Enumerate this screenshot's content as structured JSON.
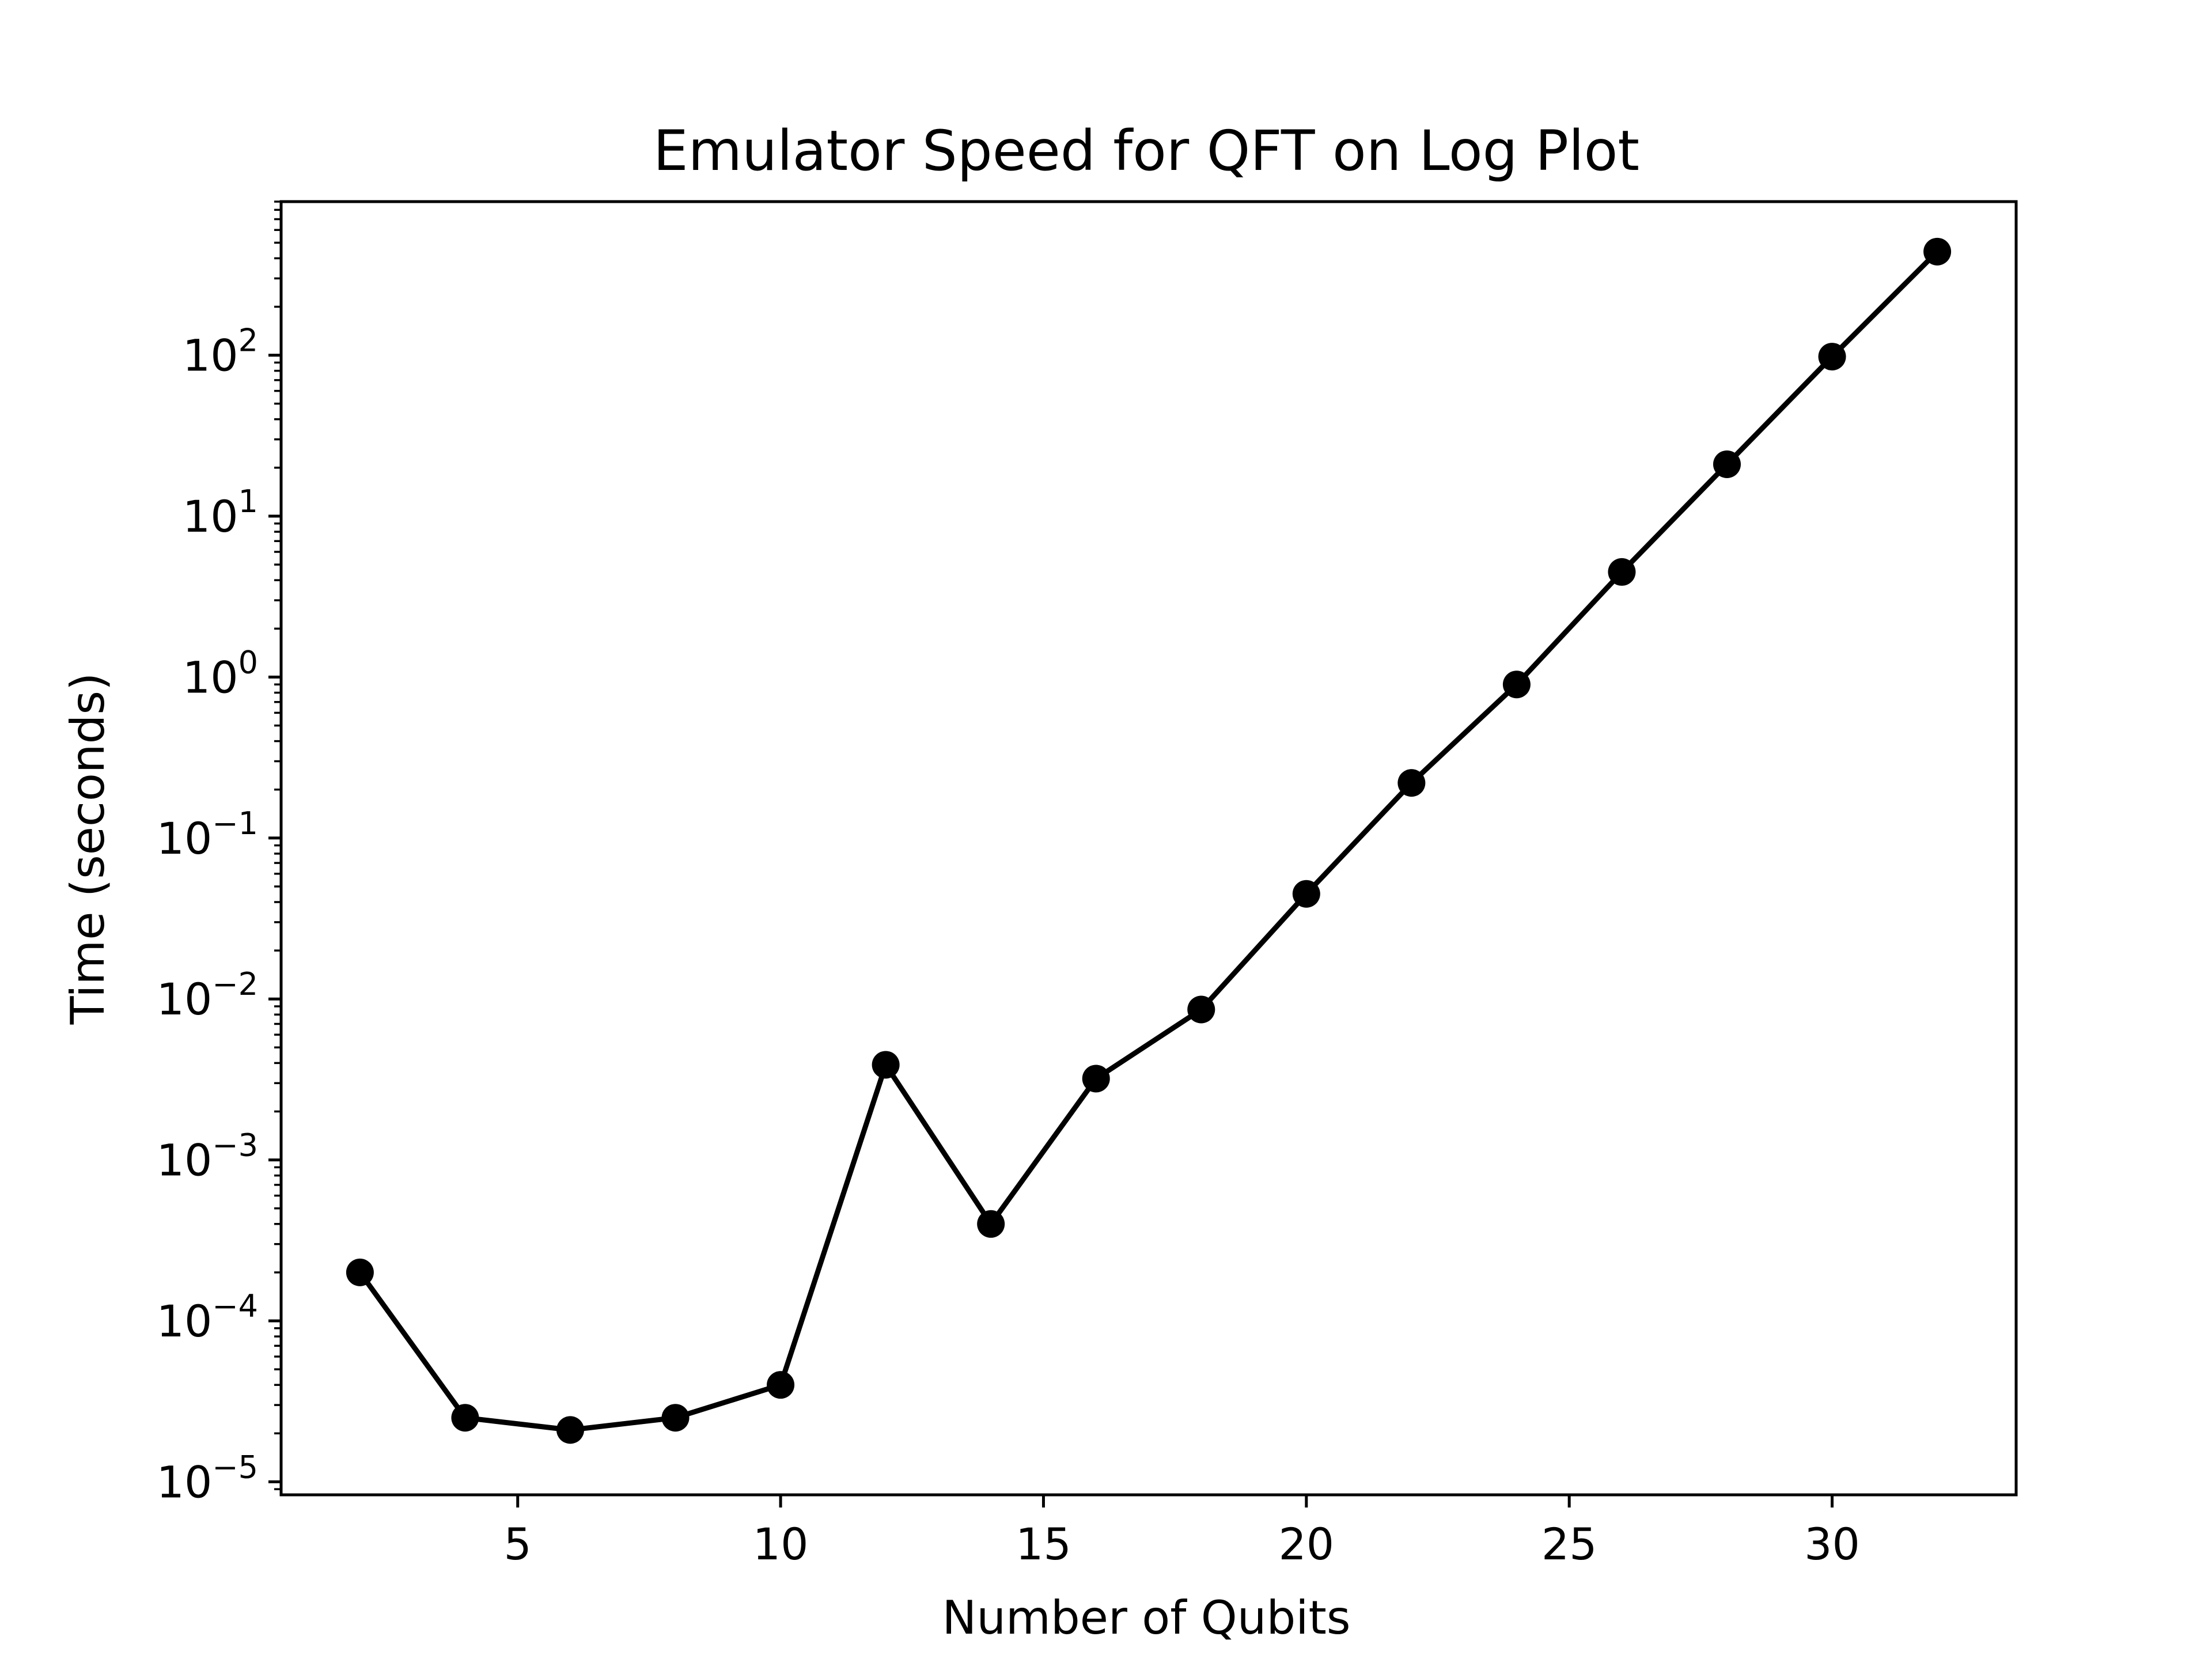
{
  "chart_data": {
    "type": "line",
    "title": "Emulator Speed for QFT on Log Plot",
    "xlabel": "Number of Qubits",
    "ylabel": "Time (seconds)",
    "xlim": [
      0.5,
      33.5
    ],
    "ylim": [
      8.3e-06,
      900
    ],
    "yscale": "log",
    "grid": false,
    "x_ticks": [
      5,
      10,
      15,
      20,
      25,
      30
    ],
    "x_tick_labels": [
      "5",
      "10",
      "15",
      "20",
      "25",
      "30"
    ],
    "y_tick_exponents": [
      -5,
      -4,
      -3,
      -2,
      -1,
      0,
      1,
      2
    ],
    "y_tick_base": "10",
    "y_tick_exponent_labels": [
      "−5",
      "−4",
      "−3",
      "−2",
      "−1",
      "0",
      "1",
      "2"
    ],
    "marker": "circle",
    "series": [
      {
        "color": "#000000",
        "x": [
          2,
          4,
          6,
          8,
          10,
          12,
          14,
          16,
          18,
          20,
          22,
          24,
          26,
          28,
          30,
          32
        ],
        "y": [
          0.0002,
          2.5e-05,
          2.1e-05,
          2.5e-05,
          4e-05,
          0.0039,
          0.0004,
          0.0032,
          0.0086,
          0.045,
          0.22,
          0.9,
          4.5,
          21,
          98,
          440
        ]
      }
    ]
  }
}
